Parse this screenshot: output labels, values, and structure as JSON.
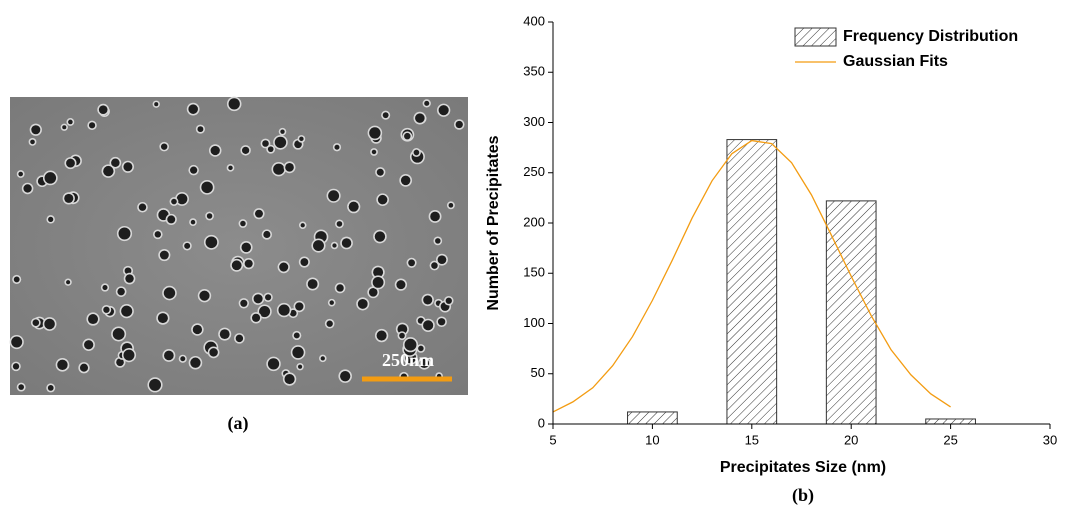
{
  "image_panel": {
    "scale_bar": "250nm",
    "caption": "(a)"
  },
  "chart_data": {
    "type": "bar",
    "x_label": "Precipitates Size (nm)",
    "y_label": "Number of Precipitates",
    "caption": "(b)",
    "x": [
      10,
      15,
      20,
      25
    ],
    "series": [
      {
        "name": "Frequency Distribution",
        "type": "bar",
        "color": "#333333",
        "values": [
          12,
          283,
          222,
          5
        ]
      },
      {
        "name": "Gaussian Fits",
        "type": "line",
        "color": "#f39c12",
        "x": [
          5,
          6,
          7,
          8,
          9,
          10,
          11,
          12,
          13,
          14,
          15,
          16,
          17,
          18,
          19,
          20,
          21,
          22,
          23,
          24,
          25
        ],
        "values": [
          12,
          22,
          36,
          58,
          87,
          123,
          163,
          205,
          242,
          269,
          282,
          279,
          260,
          228,
          188,
          147,
          108,
          74,
          49,
          30,
          17
        ]
      }
    ],
    "xlim": [
      5,
      30
    ],
    "xticks": [
      5,
      10,
      15,
      20,
      25,
      30
    ],
    "ylim": [
      0,
      400
    ],
    "yticks": [
      0,
      50,
      100,
      150,
      200,
      250,
      300,
      350,
      400
    ],
    "legend": "top-right",
    "grid": false
  }
}
